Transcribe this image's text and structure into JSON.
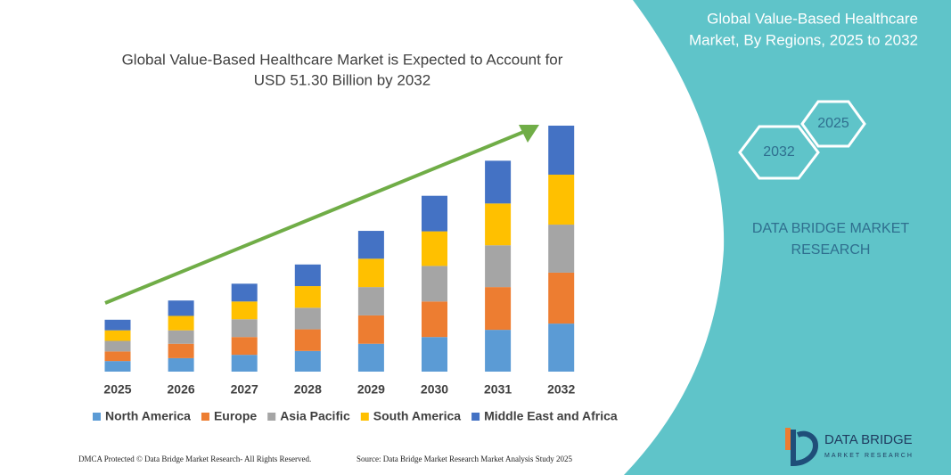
{
  "chart_data": {
    "type": "stacked_bar",
    "title_lines": [
      "Global Value-Based Healthcare Market is Expected to Account for",
      "USD 51.30 Billion by 2032"
    ],
    "categories": [
      "2025",
      "2026",
      "2027",
      "2028",
      "2029",
      "2030",
      "2031",
      "2032"
    ],
    "series": [
      {
        "name": "North America",
        "color": "#5b9bd5",
        "values": [
          2.2,
          2.8,
          3.5,
          4.3,
          5.8,
          7.2,
          8.7,
          10.0
        ]
      },
      {
        "name": "Europe",
        "color": "#ed7d31",
        "values": [
          2.0,
          3.0,
          3.7,
          4.5,
          5.9,
          7.4,
          8.9,
          10.6
        ]
      },
      {
        "name": "Asia Pacific",
        "color": "#a5a5a5",
        "values": [
          2.2,
          2.8,
          3.7,
          4.5,
          5.9,
          7.4,
          8.7,
          10.0
        ]
      },
      {
        "name": "South America",
        "color": "#ffc000",
        "values": [
          2.2,
          3.0,
          3.7,
          4.5,
          5.9,
          7.2,
          8.7,
          10.4
        ]
      },
      {
        "name": "Middle East and Africa",
        "color": "#4472c4",
        "values": [
          2.2,
          3.2,
          3.7,
          4.5,
          5.8,
          7.4,
          8.9,
          10.2
        ]
      }
    ]
  },
  "panel": {
    "heading_lines": [
      "Global Value-Based Healthcare",
      "Market, By Regions, 2025 to 2032"
    ],
    "hex_start": "2025",
    "hex_end": "2032",
    "brand_lines": [
      "DATA BRIDGE MARKET",
      "RESEARCH"
    ],
    "logo_title": "DATA BRIDGE",
    "logo_sub": "MARKET RESEARCH"
  },
  "footer": {
    "left": "DMCA Protected © Data Bridge Market Research- All Rights Reserved.",
    "right": "Source: Data Bridge Market Research Market Analysis Study 2025"
  }
}
